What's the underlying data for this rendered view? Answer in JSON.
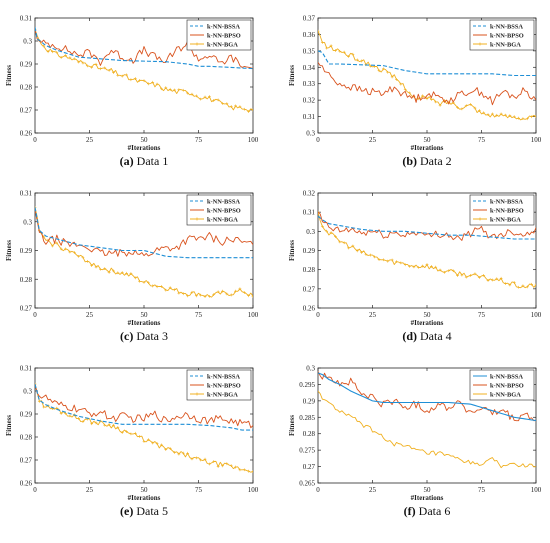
{
  "figure": {
    "axis_labels": {
      "x": "#Iterations",
      "y": "Fitness"
    },
    "series_styles": [
      {
        "name": "k-NN-BSSA",
        "color": "#1f8fd6",
        "dash": "dashed"
      },
      {
        "name": "k-NN-BPSO",
        "color": "#d9531e",
        "dash": "solid"
      },
      {
        "name": "k-NN-BGA",
        "color": "#f0b020",
        "dash": "solid",
        "marker": "plus"
      }
    ],
    "panels": [
      {
        "id": "a",
        "caption_letter": "(a)",
        "caption_text": "Data 1",
        "legend_position": "top-right"
      },
      {
        "id": "b",
        "caption_letter": "(b)",
        "caption_text": "Data 2",
        "legend_position": "top-right"
      },
      {
        "id": "c",
        "caption_letter": "(c)",
        "caption_text": "Data 3",
        "legend_position": "top-right"
      },
      {
        "id": "d",
        "caption_letter": "(d)",
        "caption_text": "Data 4",
        "legend_position": "top-right"
      },
      {
        "id": "e",
        "caption_letter": "(e)",
        "caption_text": "Data 5",
        "legend_position": "top-right"
      },
      {
        "id": "f",
        "caption_letter": "(f)",
        "caption_text": "Data 6",
        "legend_position": "top-right"
      }
    ]
  },
  "chart_data": [
    {
      "type": "line",
      "panel": "a",
      "xlabel": "#Iterations",
      "ylabel": "Fitness",
      "xlim": [
        0,
        100
      ],
      "ylim": [
        0.26,
        0.31
      ],
      "xticks": [
        0,
        25,
        50,
        75,
        100
      ],
      "yticks": [
        0.26,
        0.27,
        0.28,
        0.29,
        0.3,
        0.31
      ],
      "ytick_labels": [
        "0.26",
        "0.27",
        "0.28",
        "0.29",
        "0.3",
        "0.31"
      ],
      "grid": false,
      "legend": "top-right",
      "series": [
        {
          "name": "k-NN-BSSA",
          "x": [
            0,
            1,
            5,
            10,
            20,
            40,
            60,
            70,
            75,
            80,
            100
          ],
          "values": [
            0.306,
            0.301,
            0.298,
            0.296,
            0.293,
            0.2915,
            0.291,
            0.29,
            0.289,
            0.289,
            0.288
          ]
        },
        {
          "name": "k-NN-BPSO",
          "x": [
            0,
            2,
            5,
            10,
            15,
            20,
            25,
            30,
            35,
            40,
            45,
            50,
            55,
            60,
            65,
            70,
            75,
            80,
            85,
            90,
            95,
            100
          ],
          "values": [
            0.305,
            0.299,
            0.299,
            0.298,
            0.296,
            0.294,
            0.295,
            0.291,
            0.296,
            0.293,
            0.292,
            0.296,
            0.293,
            0.291,
            0.296,
            0.299,
            0.292,
            0.294,
            0.29,
            0.293,
            0.289,
            0.288
          ]
        },
        {
          "name": "k-NN-BGA",
          "x": [
            0,
            2,
            5,
            10,
            15,
            20,
            25,
            30,
            35,
            40,
            45,
            50,
            55,
            60,
            65,
            70,
            75,
            80,
            85,
            90,
            95,
            100
          ],
          "values": [
            0.305,
            0.3,
            0.297,
            0.294,
            0.293,
            0.291,
            0.29,
            0.288,
            0.287,
            0.285,
            0.283,
            0.282,
            0.281,
            0.279,
            0.278,
            0.278,
            0.276,
            0.275,
            0.273,
            0.271,
            0.271,
            0.27
          ]
        }
      ]
    },
    {
      "type": "line",
      "panel": "b",
      "xlabel": "#Iterations",
      "ylabel": "Fitness",
      "xlim": [
        0,
        100
      ],
      "ylim": [
        0.3,
        0.37
      ],
      "xticks": [
        0,
        25,
        50,
        75,
        100
      ],
      "yticks": [
        0.3,
        0.31,
        0.32,
        0.33,
        0.34,
        0.35,
        0.36,
        0.37
      ],
      "ytick_labels": [
        "0.3",
        "0.31",
        "0.32",
        "0.33",
        "0.34",
        "0.35",
        "0.36",
        "0.37"
      ],
      "grid": false,
      "legend": "top-right",
      "series": [
        {
          "name": "k-NN-BSSA",
          "x": [
            0,
            2,
            5,
            10,
            30,
            40,
            45,
            50,
            70,
            80,
            90,
            100
          ],
          "values": [
            0.35,
            0.349,
            0.342,
            0.342,
            0.341,
            0.338,
            0.337,
            0.336,
            0.336,
            0.336,
            0.335,
            0.335
          ]
        },
        {
          "name": "k-NN-BPSO",
          "x": [
            0,
            2,
            5,
            10,
            15,
            20,
            25,
            30,
            35,
            40,
            45,
            50,
            55,
            60,
            65,
            70,
            75,
            80,
            85,
            90,
            95,
            100
          ],
          "values": [
            0.343,
            0.34,
            0.335,
            0.33,
            0.328,
            0.326,
            0.325,
            0.324,
            0.328,
            0.323,
            0.321,
            0.324,
            0.322,
            0.32,
            0.323,
            0.326,
            0.325,
            0.319,
            0.325,
            0.322,
            0.326,
            0.32
          ]
        },
        {
          "name": "k-NN-BGA",
          "x": [
            0,
            2,
            5,
            10,
            15,
            20,
            25,
            30,
            35,
            40,
            45,
            50,
            55,
            60,
            65,
            70,
            75,
            80,
            85,
            90,
            95,
            100
          ],
          "values": [
            0.362,
            0.355,
            0.352,
            0.35,
            0.347,
            0.344,
            0.341,
            0.338,
            0.334,
            0.328,
            0.32,
            0.322,
            0.318,
            0.319,
            0.316,
            0.317,
            0.312,
            0.311,
            0.31,
            0.31,
            0.309,
            0.31
          ]
        }
      ]
    },
    {
      "type": "line",
      "panel": "c",
      "xlabel": "#Iterations",
      "ylabel": "Fitness",
      "xlim": [
        0,
        100
      ],
      "ylim": [
        0.27,
        0.31
      ],
      "xticks": [
        0,
        25,
        50,
        75,
        100
      ],
      "yticks": [
        0.27,
        0.28,
        0.29,
        0.3,
        0.31
      ],
      "ytick_labels": [
        "0.27",
        "0.28",
        "0.29",
        "0.3",
        "0.31"
      ],
      "grid": false,
      "legend": "top-right",
      "series": [
        {
          "name": "k-NN-BSSA",
          "x": [
            0,
            2,
            5,
            10,
            20,
            30,
            40,
            50,
            55,
            60,
            70,
            80,
            90,
            100
          ],
          "values": [
            0.305,
            0.297,
            0.295,
            0.294,
            0.292,
            0.291,
            0.29,
            0.29,
            0.289,
            0.288,
            0.2875,
            0.2875,
            0.2875,
            0.2875
          ]
        },
        {
          "name": "k-NN-BPSO",
          "x": [
            0,
            2,
            5,
            10,
            15,
            20,
            25,
            30,
            35,
            40,
            45,
            50,
            55,
            60,
            65,
            70,
            75,
            80,
            85,
            90,
            95,
            100
          ],
          "values": [
            0.304,
            0.296,
            0.293,
            0.294,
            0.292,
            0.292,
            0.291,
            0.289,
            0.289,
            0.289,
            0.29,
            0.288,
            0.29,
            0.291,
            0.291,
            0.294,
            0.294,
            0.295,
            0.293,
            0.294,
            0.293,
            0.292
          ]
        },
        {
          "name": "k-NN-BGA",
          "x": [
            0,
            2,
            5,
            10,
            15,
            20,
            25,
            30,
            35,
            40,
            45,
            50,
            55,
            60,
            65,
            70,
            75,
            80,
            85,
            90,
            95,
            100
          ],
          "values": [
            0.305,
            0.297,
            0.293,
            0.292,
            0.29,
            0.288,
            0.286,
            0.284,
            0.283,
            0.282,
            0.281,
            0.279,
            0.278,
            0.277,
            0.276,
            0.275,
            0.275,
            0.274,
            0.275,
            0.275,
            0.276,
            0.274
          ]
        }
      ]
    },
    {
      "type": "line",
      "panel": "d",
      "xlabel": "#Iterations",
      "ylabel": "Fitness",
      "xlim": [
        0,
        100
      ],
      "ylim": [
        0.26,
        0.32
      ],
      "xticks": [
        0,
        25,
        50,
        75,
        100
      ],
      "yticks": [
        0.26,
        0.27,
        0.28,
        0.29,
        0.3,
        0.31,
        0.32
      ],
      "ytick_labels": [
        "0.26",
        "0.27",
        "0.28",
        "0.29",
        "0.3",
        "0.31",
        "0.32"
      ],
      "grid": false,
      "legend": "top-right",
      "series": [
        {
          "name": "k-NN-BSSA",
          "x": [
            0,
            2,
            5,
            10,
            20,
            30,
            40,
            50,
            60,
            70,
            80,
            90,
            100
          ],
          "values": [
            0.308,
            0.306,
            0.304,
            0.303,
            0.301,
            0.3,
            0.3,
            0.299,
            0.298,
            0.298,
            0.297,
            0.296,
            0.296
          ]
        },
        {
          "name": "k-NN-BPSO",
          "x": [
            0,
            2,
            5,
            10,
            15,
            20,
            25,
            30,
            35,
            40,
            45,
            50,
            55,
            60,
            65,
            70,
            75,
            80,
            85,
            90,
            95,
            100
          ],
          "values": [
            0.31,
            0.305,
            0.302,
            0.3,
            0.301,
            0.299,
            0.3,
            0.298,
            0.299,
            0.298,
            0.3,
            0.297,
            0.299,
            0.298,
            0.296,
            0.299,
            0.301,
            0.297,
            0.299,
            0.3,
            0.298,
            0.302
          ]
        },
        {
          "name": "k-NN-BGA",
          "x": [
            0,
            2,
            5,
            10,
            15,
            20,
            25,
            30,
            35,
            40,
            45,
            50,
            55,
            60,
            65,
            70,
            75,
            80,
            85,
            90,
            95,
            100
          ],
          "values": [
            0.31,
            0.303,
            0.299,
            0.295,
            0.292,
            0.289,
            0.287,
            0.285,
            0.284,
            0.283,
            0.282,
            0.282,
            0.28,
            0.279,
            0.278,
            0.277,
            0.276,
            0.275,
            0.274,
            0.272,
            0.271,
            0.272
          ]
        }
      ]
    },
    {
      "type": "line",
      "panel": "e",
      "xlabel": "#Iterations",
      "ylabel": "Fitness",
      "xlim": [
        0,
        100
      ],
      "ylim": [
        0.26,
        0.31
      ],
      "xticks": [
        0,
        25,
        50,
        75,
        100
      ],
      "yticks": [
        0.26,
        0.27,
        0.28,
        0.29,
        0.3,
        0.31
      ],
      "ytick_labels": [
        "0.26",
        "0.27",
        "0.28",
        "0.29",
        "0.3",
        "0.31"
      ],
      "grid": false,
      "legend": "top-right",
      "series": [
        {
          "name": "k-NN-BSSA",
          "x": [
            0,
            2,
            5,
            10,
            20,
            30,
            40,
            50,
            60,
            70,
            80,
            90,
            95,
            100
          ],
          "values": [
            0.303,
            0.296,
            0.294,
            0.292,
            0.289,
            0.287,
            0.2855,
            0.2855,
            0.2855,
            0.2855,
            0.285,
            0.284,
            0.283,
            0.283
          ]
        },
        {
          "name": "k-NN-BPSO",
          "x": [
            0,
            2,
            5,
            10,
            15,
            20,
            25,
            30,
            35,
            40,
            45,
            50,
            55,
            60,
            65,
            70,
            75,
            80,
            85,
            90,
            95,
            100
          ],
          "values": [
            0.303,
            0.298,
            0.297,
            0.294,
            0.293,
            0.292,
            0.29,
            0.291,
            0.288,
            0.289,
            0.288,
            0.288,
            0.29,
            0.287,
            0.289,
            0.29,
            0.288,
            0.287,
            0.288,
            0.287,
            0.286,
            0.285
          ]
        },
        {
          "name": "k-NN-BGA",
          "x": [
            0,
            2,
            5,
            10,
            15,
            20,
            25,
            30,
            35,
            40,
            45,
            50,
            55,
            60,
            65,
            70,
            75,
            80,
            85,
            90,
            95,
            100
          ],
          "values": [
            0.303,
            0.296,
            0.293,
            0.292,
            0.29,
            0.288,
            0.287,
            0.286,
            0.285,
            0.283,
            0.281,
            0.279,
            0.277,
            0.275,
            0.273,
            0.272,
            0.27,
            0.269,
            0.268,
            0.267,
            0.266,
            0.265
          ]
        }
      ]
    },
    {
      "type": "line",
      "panel": "f",
      "xlabel": "#Iterations",
      "ylabel": "Fitness",
      "xlim": [
        0,
        100
      ],
      "ylim": [
        0.265,
        0.3
      ],
      "xticks": [
        0,
        25,
        50,
        75,
        100
      ],
      "yticks": [
        0.265,
        0.27,
        0.275,
        0.28,
        0.285,
        0.29,
        0.295,
        0.3
      ],
      "ytick_labels": [
        "0.265",
        "0.27",
        "0.275",
        "0.28",
        "0.285",
        "0.29",
        "0.295",
        "0.3"
      ],
      "grid": false,
      "legend": "top-right",
      "series": [
        {
          "name": "k-NN-BSSA",
          "x": [
            0,
            2,
            5,
            10,
            15,
            20,
            25,
            30,
            40,
            50,
            60,
            70,
            80,
            90,
            100
          ],
          "values": [
            0.2985,
            0.298,
            0.2965,
            0.295,
            0.293,
            0.2915,
            0.29,
            0.2895,
            0.2895,
            0.2895,
            0.2895,
            0.289,
            0.287,
            0.285,
            0.284
          ]
        },
        {
          "name": "k-NN-BPSO",
          "x": [
            0,
            2,
            5,
            10,
            15,
            20,
            25,
            30,
            35,
            40,
            45,
            50,
            55,
            60,
            65,
            70,
            75,
            80,
            85,
            90,
            95,
            100
          ],
          "values": [
            0.299,
            0.297,
            0.298,
            0.295,
            0.296,
            0.292,
            0.291,
            0.289,
            0.29,
            0.288,
            0.289,
            0.287,
            0.289,
            0.288,
            0.29,
            0.286,
            0.288,
            0.286,
            0.287,
            0.284,
            0.286,
            0.284
          ]
        },
        {
          "name": "k-NN-BGA",
          "x": [
            0,
            2,
            5,
            10,
            15,
            20,
            25,
            30,
            35,
            40,
            45,
            50,
            55,
            60,
            65,
            70,
            75,
            80,
            85,
            90,
            95,
            100
          ],
          "values": [
            0.293,
            0.291,
            0.289,
            0.287,
            0.285,
            0.283,
            0.281,
            0.279,
            0.277,
            0.276,
            0.275,
            0.274,
            0.274,
            0.273,
            0.272,
            0.271,
            0.271,
            0.272,
            0.27,
            0.271,
            0.27,
            0.27
          ]
        }
      ]
    }
  ]
}
